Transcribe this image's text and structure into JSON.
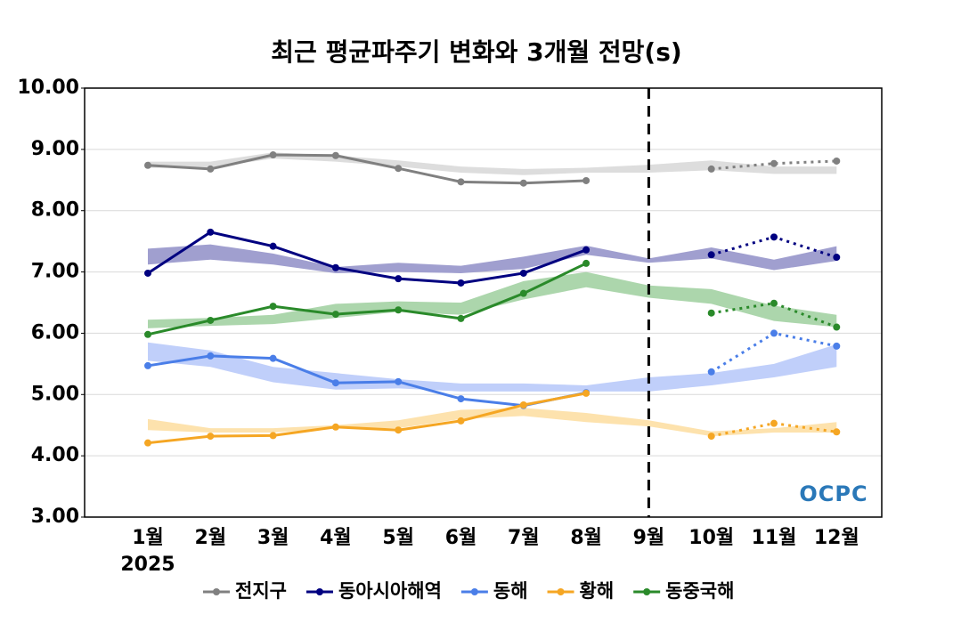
{
  "chart_data": {
    "type": "line",
    "title": "최근 평균파주기 변화와 3개월 전망(s)",
    "categories": [
      "1월",
      "2월",
      "3월",
      "4월",
      "5월",
      "6월",
      "7월",
      "8월",
      "9월",
      "10월",
      "11월",
      "12월"
    ],
    "year_label": "2025",
    "divider_category": 8,
    "logo": "OCPC",
    "ylim": [
      3,
      10
    ],
    "yticks": [
      {
        "value": 3,
        "label": "3.00"
      },
      {
        "value": 4,
        "label": "4.00"
      },
      {
        "value": 5,
        "label": "5.00"
      },
      {
        "value": 6,
        "label": "6.00"
      },
      {
        "value": 7,
        "label": "7.00"
      },
      {
        "value": 8,
        "label": "8.00"
      },
      {
        "value": 9,
        "label": "9.00"
      },
      {
        "value": 10,
        "label": "10.00"
      }
    ],
    "grid": true,
    "legend": "bottom",
    "series": [
      {
        "name": "전지구",
        "color": "#808080",
        "band_color": "#dddddd",
        "values": [
          8.74,
          8.68,
          8.91,
          8.9,
          8.69,
          8.47,
          8.45,
          8.49,
          null,
          null,
          null,
          null
        ],
        "forecast": [
          null,
          null,
          null,
          null,
          null,
          null,
          null,
          null,
          null,
          8.68,
          8.77,
          8.81
        ],
        "band_low": [
          8.7,
          8.7,
          8.85,
          8.8,
          8.72,
          8.62,
          8.58,
          8.62,
          8.62,
          8.66,
          8.6,
          8.6
        ],
        "band_high": [
          8.8,
          8.8,
          8.95,
          8.9,
          8.82,
          8.72,
          8.68,
          8.7,
          8.75,
          8.82,
          8.72,
          8.72
        ]
      },
      {
        "name": "동아시아해역",
        "color": "#000080",
        "band_color": "#a09fcf",
        "values": [
          6.98,
          7.65,
          7.42,
          7.07,
          6.89,
          6.82,
          6.98,
          7.36,
          null,
          null,
          null,
          null
        ],
        "forecast": [
          null,
          null,
          null,
          null,
          null,
          null,
          null,
          null,
          null,
          7.28,
          7.57,
          7.24
        ],
        "band_low": [
          7.12,
          7.2,
          7.12,
          6.98,
          7.0,
          6.98,
          7.05,
          7.28,
          7.15,
          7.22,
          7.03,
          7.18
        ],
        "band_high": [
          7.38,
          7.45,
          7.3,
          7.08,
          7.15,
          7.1,
          7.25,
          7.43,
          7.22,
          7.4,
          7.2,
          7.42
        ]
      },
      {
        "name": "동해",
        "color": "#4a7ee8",
        "band_color": "#c0cffa",
        "values": [
          5.47,
          5.63,
          5.59,
          5.19,
          5.21,
          4.93,
          4.82,
          5.03,
          null,
          null,
          null,
          null
        ],
        "forecast": [
          null,
          null,
          null,
          null,
          null,
          null,
          null,
          null,
          null,
          5.37,
          6.0,
          5.79
        ],
        "band_low": [
          5.55,
          5.45,
          5.2,
          5.08,
          5.1,
          5.05,
          5.05,
          5.05,
          5.05,
          5.15,
          5.28,
          5.45
        ],
        "band_high": [
          5.85,
          5.72,
          5.45,
          5.35,
          5.25,
          5.18,
          5.18,
          5.15,
          5.28,
          5.35,
          5.5,
          5.82
        ]
      },
      {
        "name": "황해",
        "color": "#f5a623",
        "band_color": "#fde2ad",
        "values": [
          4.21,
          4.32,
          4.33,
          4.47,
          4.42,
          4.57,
          4.83,
          5.02,
          null,
          null,
          null,
          null
        ],
        "forecast": [
          null,
          null,
          null,
          null,
          null,
          null,
          null,
          null,
          null,
          4.32,
          4.53,
          4.39
        ],
        "band_low": [
          4.42,
          4.38,
          4.38,
          4.45,
          4.45,
          4.6,
          4.65,
          4.55,
          4.48,
          4.32,
          4.38,
          4.38
        ],
        "band_high": [
          4.6,
          4.45,
          4.45,
          4.5,
          4.58,
          4.75,
          4.78,
          4.7,
          4.58,
          4.4,
          4.45,
          4.55
        ]
      },
      {
        "name": "동중국해",
        "color": "#2a8a2a",
        "band_color": "#acd6ac",
        "values": [
          5.98,
          6.21,
          6.44,
          6.31,
          6.38,
          6.24,
          6.65,
          7.14,
          null,
          null,
          null,
          null
        ],
        "forecast": [
          null,
          null,
          null,
          null,
          null,
          null,
          null,
          null,
          null,
          6.33,
          6.49,
          6.1
        ],
        "band_low": [
          6.08,
          6.12,
          6.15,
          6.25,
          6.35,
          6.3,
          6.55,
          6.75,
          6.58,
          6.48,
          6.2,
          6.1
        ],
        "band_high": [
          6.22,
          6.25,
          6.3,
          6.48,
          6.52,
          6.5,
          6.85,
          7.0,
          6.78,
          6.72,
          6.45,
          6.3
        ]
      }
    ]
  }
}
